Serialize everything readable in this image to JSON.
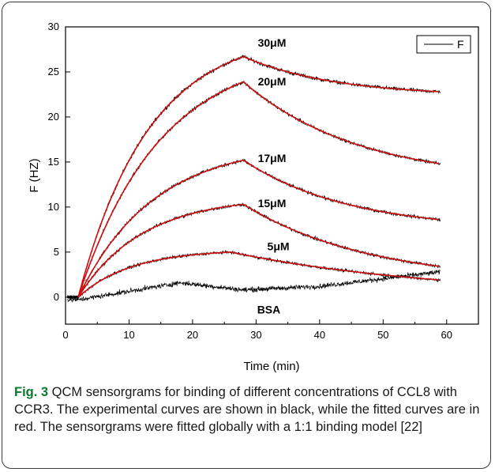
{
  "figure": {
    "fig_label": "Fig. 3",
    "caption_text": " QCM sensorgrams for binding of different concentrations of CCL8 with CCR3. The experimental curves are shown in black, while the fitted curves are in red. The sensorgrams were fitted globally with a 1:1 binding model [22]"
  },
  "chart_data": {
    "type": "line",
    "xlabel": "Time (min)",
    "ylabel": "F (HZ)",
    "xlim": [
      0,
      65
    ],
    "ylim": [
      -3,
      30
    ],
    "xticks": [
      0,
      10,
      20,
      30,
      40,
      50,
      60
    ],
    "yticks": [
      0,
      5,
      10,
      15,
      20,
      25,
      30
    ],
    "legend": {
      "entries": [
        "F"
      ],
      "placement": "top-right"
    },
    "colors": {
      "experimental": "#000000",
      "fitted": "#d01010"
    },
    "series": [
      {
        "label": "30μM",
        "label_x": 32.5,
        "label_y": 27.8,
        "peak": 26.7,
        "t_peak": 28,
        "t_start": 2,
        "k_assoc": 0.09,
        "end": 22.8,
        "k_dissoc": 0.07,
        "noise": 0.25
      },
      {
        "label": "20μM",
        "label_x": 32.5,
        "label_y": 23.5,
        "peak": 23.9,
        "t_peak": 28,
        "t_start": 2,
        "k_assoc": 0.078,
        "end": 14.8,
        "k_dissoc": 0.055,
        "noise": 0.22
      },
      {
        "label": "17μM",
        "label_x": 32.5,
        "label_y": 15.0,
        "peak": 15.2,
        "t_peak": 28,
        "t_start": 2,
        "k_assoc": 0.085,
        "end": 8.6,
        "k_dissoc": 0.06,
        "noise": 0.22
      },
      {
        "label": "15μM",
        "label_x": 32.5,
        "label_y": 10.0,
        "peak": 10.3,
        "t_peak": 28,
        "t_start": 2,
        "k_assoc": 0.1,
        "end": 3.4,
        "k_dissoc": 0.05,
        "noise": 0.22
      },
      {
        "label": "5μM",
        "label_x": 33.5,
        "label_y": 5.2,
        "peak": 5.0,
        "t_peak": 26,
        "t_start": 2,
        "k_assoc": 0.12,
        "end": 1.9,
        "k_dissoc": 0.03,
        "noise": 0.2
      }
    ],
    "bsa": {
      "label": "BSA",
      "label_x": 32.0,
      "label_y": -1.8,
      "noise": 0.35
    },
    "x_end": 59
  }
}
